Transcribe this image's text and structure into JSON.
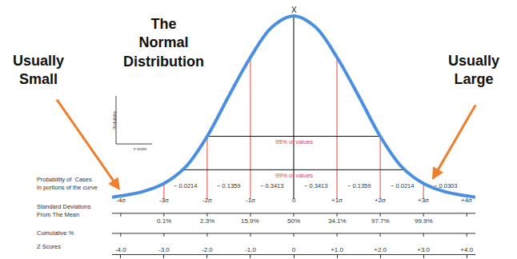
{
  "chart_data": {
    "type": "line",
    "title": "The\nNormal\nDistribution",
    "x": [
      -4.2,
      -4,
      -3.5,
      -3,
      -2.5,
      -2,
      -1.5,
      -1,
      -0.5,
      0,
      0.5,
      1,
      1.5,
      2,
      2.5,
      3,
      3.5,
      4,
      4.2
    ],
    "values": [
      0.004,
      0.007,
      0.016,
      0.034,
      0.07,
      0.137,
      0.225,
      0.309,
      0.375,
      0.399,
      0.375,
      0.309,
      0.225,
      0.137,
      0.07,
      0.034,
      0.016,
      0.007,
      0.004
    ],
    "color": "#4a8fe2",
    "xlim": [
      -4.2,
      4.2
    ],
    "xticks": [
      {
        "value": -4,
        "label": "-4.0"
      },
      {
        "value": -3,
        "label": "-3.0"
      },
      {
        "value": -2,
        "label": "-2.0"
      },
      {
        "value": -1,
        "label": "-1.0"
      },
      0,
      {
        "value": 1,
        "label": "+1.0"
      },
      {
        "value": 2,
        "label": "+2.0"
      },
      {
        "value": 3,
        "label": "+3.0"
      },
      {
        "value": 4,
        "label": "+4.0"
      }
    ],
    "ylim": [
      -0.12,
      0.42
    ],
    "tick_labels": "x",
    "grid": false,
    "peak_label": "X",
    "mean_line": {
      "x": 0,
      "color": "#000000"
    },
    "sd_lines": {
      "x": [
        -3,
        -2,
        -1,
        1,
        2,
        3
      ],
      "color": "#e0483a"
    },
    "reference_lines": [
      {
        "label": "95% of values",
        "y": 0.137,
        "x": [
          -2,
          2
        ],
        "color": "#e0483a"
      },
      {
        "label": "99% of values",
        "y": 0.064,
        "x": [
          -2.6,
          2.6
        ],
        "color": "#e0483a"
      }
    ],
    "probability_row": {
      "label": "Probability of  Cases\nin portions of the curve",
      "bounds": [
        [
          -3,
          -2
        ],
        [
          -2,
          -1
        ],
        [
          -1,
          0
        ],
        [
          0,
          1
        ],
        [
          1,
          2
        ],
        [
          2,
          3
        ],
        [
          3,
          4
        ]
      ],
      "values": [
        0.0214,
        0.1359,
        0.3413,
        0.3413,
        0.1359,
        0.0214,
        0.0303
      ],
      "value_labels": [
        "~ 0.0214",
        "~ 0.1359",
        "~ 0.3413",
        "~ 0.3413",
        "~ 0.1359",
        "~ 0.0214",
        "~ 0.0303"
      ]
    },
    "sd_row": {
      "label": "Standard Deviations\nFrom The Mean",
      "x": [
        -4,
        -3,
        -2,
        -1,
        0,
        1,
        2,
        3,
        4
      ],
      "labels": [
        "-4σ",
        "-3σ",
        "-2σ",
        "-1σ",
        "0",
        "+1σ",
        "+2σ",
        "+3σ",
        "+4σ"
      ]
    },
    "cumulative_row": {
      "label": "Cumulative %",
      "x": [
        -3,
        -2,
        -1,
        0,
        1,
        2,
        3
      ],
      "values": [
        0.1,
        2.3,
        15.9,
        50,
        34.1,
        97.7,
        99.9
      ],
      "value_labels": [
        "0.1%",
        "2.3%",
        "15.9%",
        "50%",
        "34.1%",
        "97.7%",
        "99.9%"
      ]
    },
    "x_label": "Z Scores",
    "callouts": [
      "Usually\nSmall",
      "Usually\nLarge"
    ],
    "inset": {
      "y_label": "Probability",
      "x_label": "z-score"
    }
  }
}
